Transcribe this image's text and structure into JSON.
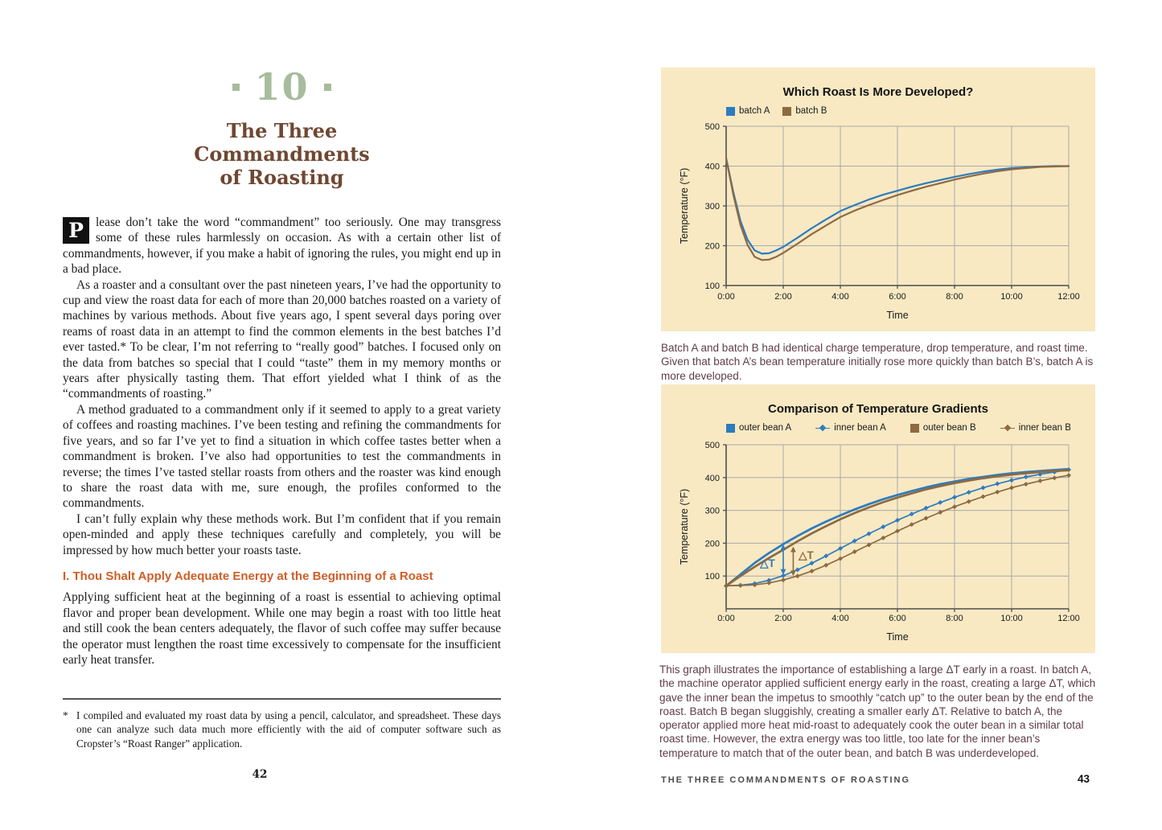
{
  "page_left": {
    "chapter_number": "10",
    "title_lines": [
      "The Three",
      "Commandments",
      "of Roasting"
    ],
    "dropcap": "P",
    "paragraph_1": "lease don’t take the word “commandment” too seriously. One may transgress some of these rules harmlessly on occasion. As with a certain other list of commandments, however, if you make a habit of ignoring the rules, you might end up in a bad place.",
    "paragraph_2": "As a roaster and a consultant over the past nineteen years, I’ve had the opportunity to cup and view the roast data for each of more than 20,000 batches roasted on a variety of machines by various methods. About five years ago, I spent several days poring over reams of roast data in an attempt to find the common elements in the best batches I’d ever tasted.* To be clear, I’m not referring to “really good” batches. I focused only on the data from batches so special that I could “taste” them in my memory months or years after physically tasting them. That effort yielded what I think of as the “commandments of roasting.”",
    "paragraph_3": "A method graduated to a commandment only if it seemed to apply to a great variety of coffees and roasting machines. I’ve been testing and refining the commandments for five years, and so far I’ve yet to find a situation in which coffee tastes better when a commandment is broken. I’ve also had opportunities to test the commandments in reverse; the times I’ve tasted stellar roasts from others and the roaster was kind enough to share the roast data with me, sure enough, the profiles conformed to the commandments.",
    "paragraph_4": "I can’t fully explain why these methods work. But I’m confident that if you remain open-minded and apply these techniques carefully and completely, you will be impressed by how much better your roasts taste.",
    "section_heading": "I. Thou Shalt Apply Adequate Energy at the Beginning of a Roast",
    "section_paragraph": "Applying sufficient heat at the beginning of a roast is essential to achieving optimal flavor and proper bean development. While one may begin a roast with too little heat and still cook the bean centers adequately, the flavor of such coffee may suffer because the operator must lengthen the roast time excessively to compensate for the insufficient early heat transfer.",
    "footnote_marker": "*",
    "footnote": "I compiled and evaluated my roast data by using a pencil, calculator, and spreadsheet. These days one can analyze such data much more efficiently with the aid of computer software such as Cropster’s “Roast Ranger” application.",
    "page_number": "42"
  },
  "page_right": {
    "caption_1": "Batch A and batch B had identical charge temperature, drop temperature, and roast time. Given that batch A’s bean temperature initially rose more quickly than batch B’s, batch A is more developed.",
    "caption_2": "This graph illustrates the importance of establishing a large ΔT early in a roast. In batch A, the machine operator applied sufficient energy early in the roast, creating a large ΔT, which gave the inner bean the impetus to smoothly “catch up” to the outer bean by the end of the roast. Batch B began sluggishly, creating a smaller early ΔT. Relative to batch A, the operator applied more heat mid-roast to adequately cook the outer bean in a similar total roast time. However, the extra energy was too little, too late for the inner bean’s temperature to match that of the outer bean, and batch B was underdeveloped.",
    "footer": {
      "title": "THE THREE COMMANDMENTS OF ROASTING",
      "page_number": "43"
    }
  },
  "colors": {
    "accent_blue": "#2e7bbf",
    "accent_brown": "#8e6a41",
    "panel_background": "#f8e9c3",
    "caption_text": "#5e3d49",
    "heading_orange": "#ce5f28",
    "title_brown": "#6f4731",
    "chapter_green": "#a7bc9c",
    "gridline": "#a9a9a9",
    "axis": "#4d4d4d"
  },
  "chart_data": [
    {
      "type": "line",
      "title": "Which Roast Is More Developed?",
      "xlabel": "Time",
      "ylabel": "Temperature (°F)",
      "x_ticks": [
        "0:00",
        "2:00",
        "4:00",
        "6:00",
        "8:00",
        "10:00",
        "12:00"
      ],
      "y_ticks": [
        500,
        400,
        300,
        200,
        100
      ],
      "xlim": [
        0,
        12
      ],
      "ylim": [
        100,
        500
      ],
      "grid": true,
      "legend_position": "top-left",
      "series": [
        {
          "name": "batch A",
          "color": "#2e7bbf",
          "marker": "none",
          "x": [
            0,
            0.25,
            0.5,
            0.75,
            1,
            1.25,
            1.5,
            1.75,
            2,
            2.5,
            3,
            3.5,
            4,
            4.5,
            5,
            5.5,
            6,
            6.5,
            7,
            7.5,
            8,
            8.5,
            9,
            9.5,
            10,
            10.5,
            11,
            11.5,
            12
          ],
          "values": [
            420,
            335,
            262,
            215,
            188,
            180,
            181,
            188,
            197,
            220,
            244,
            266,
            287,
            302,
            316,
            328,
            338,
            348,
            357,
            365,
            373,
            380,
            386,
            391,
            395,
            397,
            399,
            400,
            400
          ]
        },
        {
          "name": "batch B",
          "color": "#8e6a41",
          "marker": "none",
          "x": [
            0,
            0.25,
            0.5,
            0.75,
            1,
            1.25,
            1.5,
            1.75,
            2,
            2.5,
            3,
            3.5,
            4,
            4.5,
            5,
            5.5,
            6,
            6.5,
            7,
            7.5,
            8,
            8.5,
            9,
            9.5,
            10,
            10.5,
            11,
            11.5,
            12
          ],
          "values": [
            420,
            328,
            252,
            202,
            172,
            164,
            165,
            172,
            182,
            205,
            229,
            251,
            272,
            288,
            302,
            315,
            327,
            338,
            348,
            357,
            366,
            374,
            381,
            387,
            392,
            395,
            398,
            399,
            400
          ]
        }
      ],
      "annotations": []
    },
    {
      "type": "line",
      "title": "Comparison of Temperature Gradients",
      "xlabel": "Time",
      "ylabel": "Temperature (°F)",
      "x_ticks": [
        "0:00",
        "2:00",
        "4:00",
        "6:00",
        "8:00",
        "10:00",
        "12:00"
      ],
      "y_ticks": [
        500,
        400,
        300,
        200,
        100
      ],
      "xlim": [
        0,
        12
      ],
      "ylim": [
        0,
        500
      ],
      "grid": true,
      "legend_position": "top",
      "series": [
        {
          "name": "outer bean A",
          "color": "#2e7bbf",
          "marker": "none",
          "x": [
            0,
            0.5,
            1,
            1.5,
            2,
            2.5,
            3,
            3.5,
            4,
            4.5,
            5,
            5.5,
            6,
            6.5,
            7,
            7.5,
            8,
            8.5,
            9,
            9.5,
            10,
            10.5,
            11,
            11.5,
            12
          ],
          "values": [
            70,
            105,
            140,
            170,
            197,
            222,
            245,
            266,
            285,
            303,
            319,
            334,
            347,
            359,
            370,
            380,
            388,
            396,
            402,
            408,
            413,
            417,
            420,
            423,
            426
          ]
        },
        {
          "name": "inner bean A",
          "color": "#2e7bbf",
          "marker": "diamond",
          "x": [
            0,
            0.5,
            1,
            1.5,
            2,
            2.5,
            3,
            3.5,
            4,
            4.5,
            5,
            5.5,
            6,
            6.5,
            7,
            7.5,
            8,
            8.5,
            9,
            9.5,
            10,
            10.5,
            11,
            11.5,
            12
          ],
          "values": [
            70,
            72,
            77,
            87,
            101,
            119,
            139,
            161,
            184,
            207,
            229,
            250,
            270,
            289,
            307,
            324,
            340,
            355,
            369,
            381,
            392,
            402,
            410,
            417,
            424
          ]
        },
        {
          "name": "outer bean B",
          "color": "#8e6a41",
          "marker": "none",
          "x": [
            0,
            0.5,
            1,
            1.5,
            2,
            2.5,
            3,
            3.5,
            4,
            4.5,
            5,
            5.5,
            6,
            6.5,
            7,
            7.5,
            8,
            8.5,
            9,
            9.5,
            10,
            10.5,
            11,
            11.5,
            12
          ],
          "values": [
            70,
            100,
            128,
            155,
            180,
            206,
            230,
            252,
            273,
            292,
            309,
            325,
            339,
            352,
            364,
            374,
            383,
            391,
            398,
            404,
            409,
            413,
            417,
            420,
            422
          ]
        },
        {
          "name": "inner bean B",
          "color": "#8e6a41",
          "marker": "diamond",
          "x": [
            0,
            0.5,
            1,
            1.5,
            2,
            2.5,
            3,
            3.5,
            4,
            4.5,
            5,
            5.5,
            6,
            6.5,
            7,
            7.5,
            8,
            8.5,
            9,
            9.5,
            10,
            10.5,
            11,
            11.5,
            12
          ],
          "values": [
            70,
            71,
            73,
            79,
            88,
            100,
            115,
            133,
            153,
            174,
            195,
            216,
            237,
            257,
            276,
            294,
            311,
            327,
            342,
            356,
            369,
            380,
            390,
            399,
            407
          ]
        }
      ],
      "annotations": [
        {
          "type": "arrow",
          "x": 2.0,
          "from": 196,
          "to": 104,
          "color": "#2e7bbf"
        },
        {
          "type": "arrow",
          "x": 2.35,
          "from": 190,
          "to": 100,
          "color": "#8e6a41"
        },
        {
          "type": "label",
          "text": "△T",
          "x": 1.45,
          "y": 128,
          "color": "#2e7bbf"
        },
        {
          "type": "label",
          "text": "△T",
          "x": 2.8,
          "y": 152,
          "color": "#8e6a41"
        }
      ]
    }
  ]
}
